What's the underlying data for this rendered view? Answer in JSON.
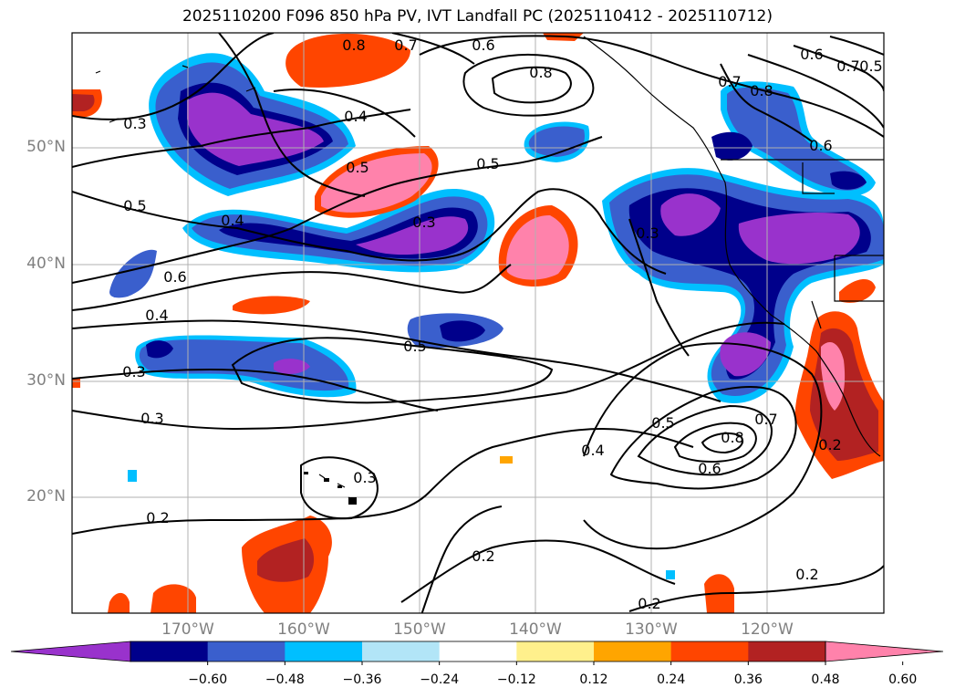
{
  "title": "2025110200 F096 850 hPa PV, IVT Landfall PC (2025110412 - 2025110712)",
  "lat_labels": [
    "50°N",
    "40°N",
    "30°N",
    "20°N"
  ],
  "lon_labels": [
    "170°W",
    "160°W",
    "150°W",
    "140°W",
    "130°W",
    "120°W"
  ],
  "colorbar": {
    "colors": [
      "#9932cc",
      "#00008b",
      "#3a5fcd",
      "#00bfff",
      "#b2e5f7",
      "#ffffff",
      "#fff08c",
      "#ffa500",
      "#ff4500",
      "#b22222",
      "#ff82ab"
    ],
    "ticks": [
      "−0.60",
      "−0.48",
      "−0.36",
      "−0.24",
      "−0.12",
      "0.12",
      "0.24",
      "0.36",
      "0.48",
      "0.60"
    ]
  },
  "contour_labels": [
    {
      "text": "0.8"
    },
    {
      "text": "0.7"
    },
    {
      "text": "0.6"
    },
    {
      "text": "0.8"
    },
    {
      "text": "0.7"
    },
    {
      "text": "0.6"
    },
    {
      "text": "0.5"
    },
    {
      "text": "0.7"
    },
    {
      "text": "0.8"
    },
    {
      "text": "0.6"
    },
    {
      "text": "0.3"
    },
    {
      "text": "0.4"
    },
    {
      "text": "0.5"
    },
    {
      "text": "0.5"
    },
    {
      "text": "0.5"
    },
    {
      "text": "0.4"
    },
    {
      "text": "0.3"
    },
    {
      "text": "0.3"
    },
    {
      "text": "0.6"
    },
    {
      "text": "0.4"
    },
    {
      "text": "0.5"
    },
    {
      "text": "0.3"
    },
    {
      "text": "0.3"
    },
    {
      "text": "0.5"
    },
    {
      "text": "0.8"
    },
    {
      "text": "0.7"
    },
    {
      "text": "0.6"
    },
    {
      "text": "0.4"
    },
    {
      "text": "0.2"
    },
    {
      "text": "0.3"
    },
    {
      "text": "0.2"
    },
    {
      "text": "0.2"
    },
    {
      "text": "0.2"
    },
    {
      "text": "0.2"
    }
  ]
}
